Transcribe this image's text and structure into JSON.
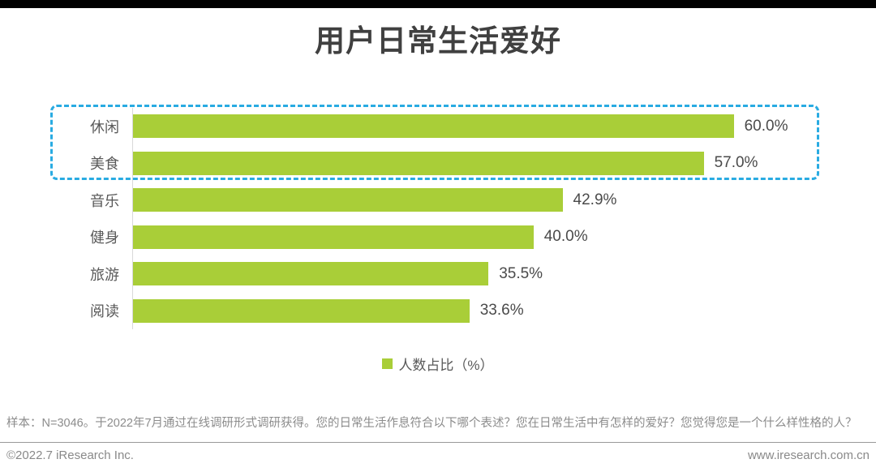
{
  "title": "用户日常生活爱好",
  "chart_data": {
    "type": "bar",
    "orientation": "horizontal",
    "title": "用户日常生活爱好",
    "categories": [
      "休闲",
      "美食",
      "音乐",
      "健身",
      "旅游",
      "阅读"
    ],
    "values": [
      60.0,
      57.0,
      42.9,
      40.0,
      35.5,
      33.6
    ],
    "value_labels": [
      "60.0%",
      "57.0%",
      "42.9%",
      "40.0%",
      "35.5%",
      "33.6%"
    ],
    "series_name": "人数占比（%）",
    "xlabel": "",
    "ylabel": "",
    "xlim": [
      0,
      68.7
    ],
    "grid": false,
    "legend_position": "bottom-center",
    "bar_color": "#a9ce38",
    "highlight": {
      "categories": [
        "休闲",
        "美食"
      ],
      "box_color": "#29abe2",
      "box_style": "dashed"
    }
  },
  "legend": {
    "label": "人数占比（%）",
    "swatch_color": "#a9ce38"
  },
  "footnote": "样本：N=3046。于2022年7月通过在线调研形式调研获得。您的日常生活作息符合以下哪个表述？您在日常生活中有怎样的爱好？您觉得您是一个什么样性格的人？",
  "footer": {
    "left": "©2022.7 iResearch Inc.",
    "right": "www.iresearch.com.cn"
  }
}
